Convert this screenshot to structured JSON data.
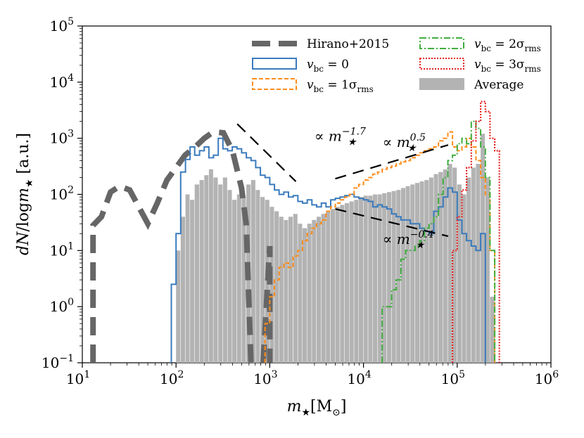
{
  "chart_data": {
    "type": "histogram",
    "title": "",
    "xlabel": "m★[M⊙]",
    "ylabel": "dN/logm★ [a.u.]",
    "xscale": "log",
    "yscale": "log",
    "xlim": [
      10,
      1000000
    ],
    "ylim": [
      0.1,
      100000
    ],
    "x_ticks": [
      {
        "value": 10,
        "base": "10",
        "exp": "1"
      },
      {
        "value": 100,
        "base": "10",
        "exp": "2"
      },
      {
        "value": 1000,
        "base": "10",
        "exp": "3"
      },
      {
        "value": 10000,
        "base": "10",
        "exp": "4"
      },
      {
        "value": 100000,
        "base": "10",
        "exp": "5"
      },
      {
        "value": 1000000,
        "base": "10",
        "exp": "6"
      }
    ],
    "y_ticks": [
      {
        "value": 0.1,
        "base": "10",
        "exp": "−1"
      },
      {
        "value": 1,
        "base": "10",
        "exp": "0"
      },
      {
        "value": 10,
        "base": "10",
        "exp": "1"
      },
      {
        "value": 100,
        "base": "10",
        "exp": "2"
      },
      {
        "value": 1000,
        "base": "10",
        "exp": "3"
      },
      {
        "value": 10000,
        "base": "10",
        "exp": "4"
      },
      {
        "value": 100000,
        "base": "10",
        "exp": "5"
      }
    ],
    "grid": false,
    "legend_position": "top-right",
    "series": [
      {
        "name": "Hirano+2015",
        "style": "dashed-thick",
        "color": "#666666",
        "x": [
          13,
          13,
          16,
          20,
          25,
          32,
          40,
          50,
          63,
          80,
          100,
          125,
          160,
          200,
          250,
          320,
          400,
          500,
          560,
          630,
          630,
          850,
          1000,
          1000
        ],
        "values": [
          0.1,
          28,
          40,
          110,
          140,
          120,
          60,
          30,
          70,
          180,
          300,
          500,
          700,
          1000,
          1300,
          1250,
          600,
          130,
          30,
          0.1,
          null,
          0.1,
          12,
          0.1
        ]
      },
      {
        "name": "vbc = 0",
        "style": "step-solid",
        "color": "#3a7bbd",
        "edges": [
          89,
          100,
          112,
          126,
          141,
          158,
          178,
          200,
          224,
          251,
          282,
          316,
          355,
          398,
          447,
          501,
          562,
          631,
          708,
          794,
          891,
          1000,
          1122,
          1259,
          1413,
          1585,
          1778,
          1995,
          2239,
          2512,
          2818,
          3162,
          3548,
          3981,
          4467,
          5012,
          5623,
          6310,
          7079,
          7943,
          8913,
          10000,
          11220,
          12589,
          14125,
          15849,
          17783,
          19953,
          22387,
          25119,
          28184,
          31623,
          35481,
          39811,
          44668,
          50119,
          56234,
          63096,
          70795,
          79433,
          89125,
          100000,
          112202,
          125893,
          141254,
          158489,
          177828,
          199526
        ],
        "values": [
          2.5,
          20,
          250,
          420,
          700,
          500,
          600,
          700,
          450,
          500,
          1000,
          650,
          600,
          700,
          650,
          550,
          450,
          400,
          300,
          220,
          200,
          150,
          120,
          100,
          110,
          90,
          95,
          75,
          70,
          80,
          65,
          60,
          70,
          60,
          80,
          85,
          90,
          95,
          100,
          90,
          85,
          80,
          75,
          60,
          65,
          60,
          55,
          45,
          40,
          35,
          35,
          30,
          30,
          25,
          22,
          20,
          50,
          60,
          90,
          130,
          110,
          35,
          20,
          15,
          12,
          10,
          20
        ]
      },
      {
        "name": "vbc = 1σrms",
        "style": "step-dashed",
        "color": "#ff8c1a",
        "edges": [
          891,
          1000,
          1122,
          1259,
          1413,
          1585,
          1778,
          1995,
          2239,
          2512,
          2818,
          3162,
          3548,
          3981,
          4467,
          5012,
          5623,
          6310,
          7079,
          7943,
          8913,
          10000,
          11220,
          12589,
          14125,
          15849,
          17783,
          19953,
          22387,
          25119,
          28184,
          31623,
          35481,
          39811,
          44668,
          50119,
          56234,
          63096,
          70795,
          79433,
          89125,
          100000,
          112202,
          125893,
          141254,
          158489,
          177828,
          199526,
          223872,
          251189
        ],
        "values": [
          0.5,
          1.5,
          3,
          5,
          6,
          5,
          8,
          10,
          15,
          20,
          25,
          30,
          35,
          50,
          60,
          70,
          80,
          90,
          100,
          130,
          150,
          180,
          200,
          230,
          250,
          280,
          300,
          320,
          350,
          380,
          400,
          450,
          500,
          550,
          600,
          650,
          700,
          900,
          1000,
          1300,
          700,
          600,
          700,
          1000,
          700,
          400,
          200,
          100,
          10
        ]
      },
      {
        "name": "vbc = 2σrms",
        "style": "step-dashdot",
        "color": "#3fae3f",
        "edges": [
          15849,
          17783,
          19953,
          22387,
          25119,
          28184,
          31623,
          35481,
          39811,
          44668,
          50119,
          56234,
          63096,
          70795,
          79433,
          89125,
          100000,
          112202,
          125893,
          141254,
          158489,
          177828,
          199526,
          223872,
          251189
        ],
        "values": [
          1,
          1,
          2,
          3,
          7,
          10,
          10,
          12,
          15,
          25,
          30,
          40,
          100,
          200,
          400,
          500,
          800,
          1000,
          800,
          2000,
          1500,
          700,
          200,
          10
        ]
      },
      {
        "name": "vbc = 3σrms",
        "style": "step-dotted",
        "color": "#e62020",
        "edges": [
          89125,
          100000,
          112202,
          125893,
          141254,
          158489,
          177828,
          199526,
          223872,
          251189,
          281838
        ],
        "values": [
          10,
          40,
          120,
          300,
          900,
          2000,
          4500,
          3000,
          1000,
          600
        ]
      },
      {
        "name": "Average",
        "style": "filled-bars",
        "color": "#b3b3b3",
        "edges": [
          100,
          112,
          126,
          141,
          158,
          178,
          200,
          224,
          251,
          282,
          316,
          355,
          398,
          447,
          501,
          562,
          631,
          708,
          794,
          891,
          1000,
          1122,
          1259,
          1413,
          1585,
          1778,
          1995,
          2239,
          2512,
          2818,
          3162,
          3548,
          3981,
          4467,
          5012,
          5623,
          6310,
          7079,
          7943,
          8913,
          10000,
          11220,
          12589,
          14125,
          15849,
          17783,
          19953,
          22387,
          25119,
          28184,
          31623,
          35481,
          39811,
          44668,
          50119,
          56234,
          63096,
          70795,
          79433,
          89125,
          100000,
          112202,
          125893,
          141254,
          158489,
          177828,
          199526,
          223872,
          251189
        ],
        "values": [
          10,
          40,
          100,
          80,
          150,
          180,
          220,
          280,
          200,
          150,
          200,
          120,
          80,
          100,
          90,
          150,
          180,
          120,
          90,
          80,
          60,
          50,
          40,
          35,
          40,
          45,
          30,
          25,
          30,
          35,
          40,
          45,
          50,
          55,
          60,
          65,
          70,
          75,
          80,
          90,
          95,
          95,
          100,
          100,
          105,
          110,
          115,
          120,
          130,
          140,
          150,
          160,
          170,
          180,
          200,
          230,
          250,
          280,
          350,
          300,
          150,
          100,
          200,
          300,
          350,
          1200,
          200,
          1.5
        ]
      }
    ],
    "annotations": [
      {
        "base": "∝ m",
        "sub": "★",
        "sup": "−1.7",
        "x": 3000,
        "y": 900
      },
      {
        "base": "∝ m",
        "sub": "★",
        "sup": "0.5",
        "x": 16000,
        "y": 700
      },
      {
        "base": "∝ m",
        "sub": "★",
        "sup": "−0.4",
        "x": 16000,
        "y": 13
      }
    ],
    "power_law_guides": [
      {
        "exponent": -1.7,
        "x": [
          450,
          1900
        ],
        "y": [
          1800,
          170
        ]
      },
      {
        "exponent": 0.5,
        "x": [
          5000,
          80000
        ],
        "y": [
          190,
          760
        ]
      },
      {
        "exponent": -0.4,
        "x": [
          5000,
          80000
        ],
        "y": [
          55,
          18
        ]
      }
    ],
    "legend": [
      {
        "label_base": "Hirano+2015",
        "sub": "",
        "rest": "",
        "sub2": ""
      },
      {
        "label_base": "v",
        "sub": "bc",
        "rest": " = 0",
        "sub2": ""
      },
      {
        "label_base": "v",
        "sub": "bc",
        "rest": " = 1σ",
        "sub2": "rms"
      },
      {
        "label_base": "v",
        "sub": "bc",
        "rest": " = 2σ",
        "sub2": "rms"
      },
      {
        "label_base": "v",
        "sub": "bc",
        "rest": " = 3σ",
        "sub2": "rms"
      },
      {
        "label_base": "Average",
        "sub": "",
        "rest": "",
        "sub2": ""
      }
    ]
  }
}
